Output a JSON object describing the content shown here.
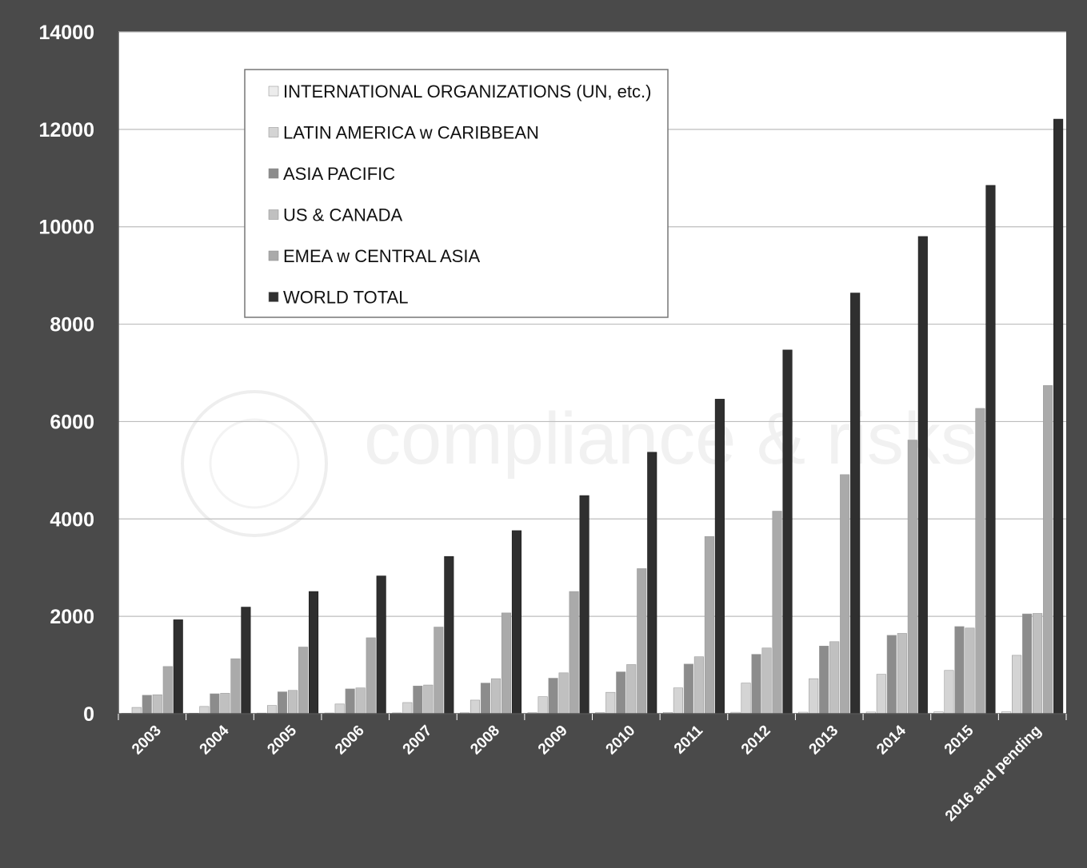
{
  "colors": {
    "background": "#4a4a4a",
    "plot_area": "#ffffff",
    "gridline": "#bdbdbd",
    "axis_text": "#ffffff",
    "legend_text": "#111111"
  },
  "watermark": {
    "text": "compliance & risks",
    "note": "watermark (logo lettering)"
  },
  "chart_data": {
    "type": "bar",
    "categories": [
      "2003",
      "2004",
      "2005",
      "2006",
      "2007",
      "2008",
      "2009",
      "2010",
      "2011",
      "2012",
      "2013",
      "2014",
      "2015",
      "2016 and pending"
    ],
    "ylim": [
      0,
      14000
    ],
    "yticks": [
      0,
      2000,
      4000,
      6000,
      8000,
      10000,
      12000,
      14000
    ],
    "title": "",
    "xlabel": "",
    "ylabel": "",
    "grid": true,
    "legend_position": "top-left",
    "series": [
      {
        "name": "INTERNATIONAL ORGANIZATIONS (UN, etc.)",
        "color": "#ececec",
        "values": [
          10,
          12,
          14,
          16,
          18,
          20,
          22,
          25,
          28,
          30,
          32,
          35,
          38,
          40
        ]
      },
      {
        "name": "LATIN AMERICA w CARIBBEAN",
        "color": "#d4d4d4",
        "values": [
          130,
          150,
          170,
          200,
          230,
          280,
          350,
          440,
          530,
          630,
          720,
          810,
          890,
          1200
        ]
      },
      {
        "name": "ASIA PACIFIC",
        "color": "#8c8c8c",
        "values": [
          380,
          410,
          450,
          510,
          570,
          630,
          730,
          860,
          1020,
          1220,
          1390,
          1610,
          1790,
          2050
        ]
      },
      {
        "name": "US & CANADA",
        "color": "#c0c0c0",
        "values": [
          390,
          420,
          480,
          530,
          590,
          720,
          840,
          1010,
          1170,
          1350,
          1480,
          1650,
          1760,
          2060
        ]
      },
      {
        "name": "EMEA w CENTRAL ASIA",
        "color": "#aaaaaa",
        "values": [
          970,
          1130,
          1370,
          1560,
          1780,
          2070,
          2510,
          2980,
          3640,
          4160,
          4910,
          5620,
          6270,
          6740
        ]
      },
      {
        "name": "WORLD TOTAL",
        "color": "#2f2f2f",
        "values": [
          1930,
          2190,
          2510,
          2830,
          3230,
          3760,
          4480,
          5370,
          6460,
          7470,
          8640,
          9800,
          10850,
          12210
        ]
      }
    ]
  }
}
